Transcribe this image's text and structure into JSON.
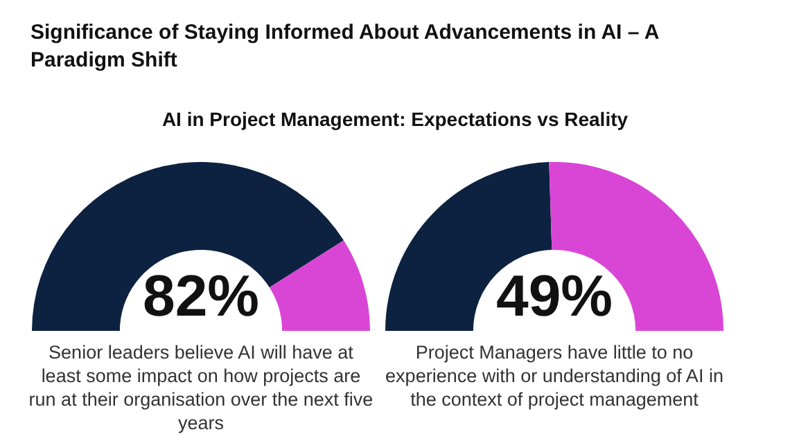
{
  "chart_data": [
    {
      "type": "donut",
      "title": "Significance of Staying Informed About Advancements in AI – A Paradigm Shift",
      "subtitle": "AI in Project Management: Expectations vs Reality",
      "categories": [
        null,
        null
      ],
      "values": [
        82,
        18
      ],
      "colors": [
        "#0d2240",
        "#d946d6"
      ],
      "value_labels": [
        "82%",
        null
      ],
      "annotations": [
        "Senior leaders believe AI will have at least some impact on how projects are run at their organisation over the next five years"
      ]
    },
    {
      "type": "donut",
      "categories": [
        null,
        null
      ],
      "values": [
        49,
        51
      ],
      "colors": [
        "#0d2240",
        "#d946d6"
      ],
      "value_labels": [
        "49%",
        null
      ],
      "annotations": [
        "Project Managers have little to no experience with or understanding of AI in the context of project management"
      ]
    }
  ]
}
